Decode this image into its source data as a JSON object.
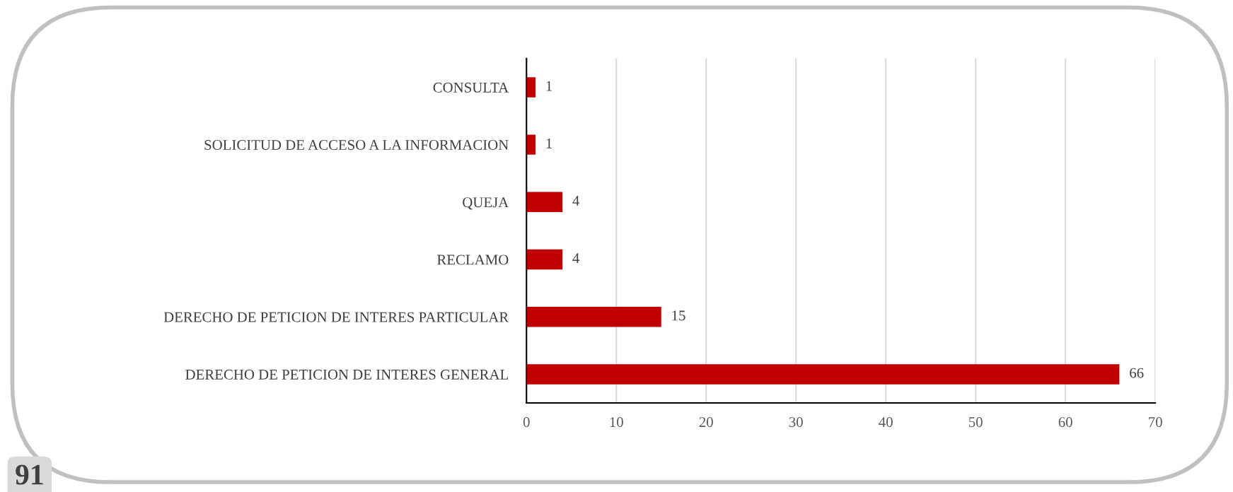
{
  "chart_data": {
    "type": "bar",
    "orientation": "horizontal",
    "categories": [
      "CONSULTA",
      "SOLICITUD DE ACCESO A LA INFORMACION",
      "QUEJA",
      "RECLAMO",
      "DERECHO DE PETICION DE INTERES PARTICULAR",
      "DERECHO DE PETICION DE INTERES GENERAL"
    ],
    "values": [
      1,
      1,
      4,
      4,
      15,
      66
    ],
    "color": "#c00000",
    "xlim": [
      0,
      70
    ],
    "xticks": [
      0,
      10,
      20,
      30,
      40,
      50,
      60,
      70
    ],
    "grid": "x",
    "data_labels": true,
    "legend": false,
    "annotations": [
      "91"
    ]
  }
}
